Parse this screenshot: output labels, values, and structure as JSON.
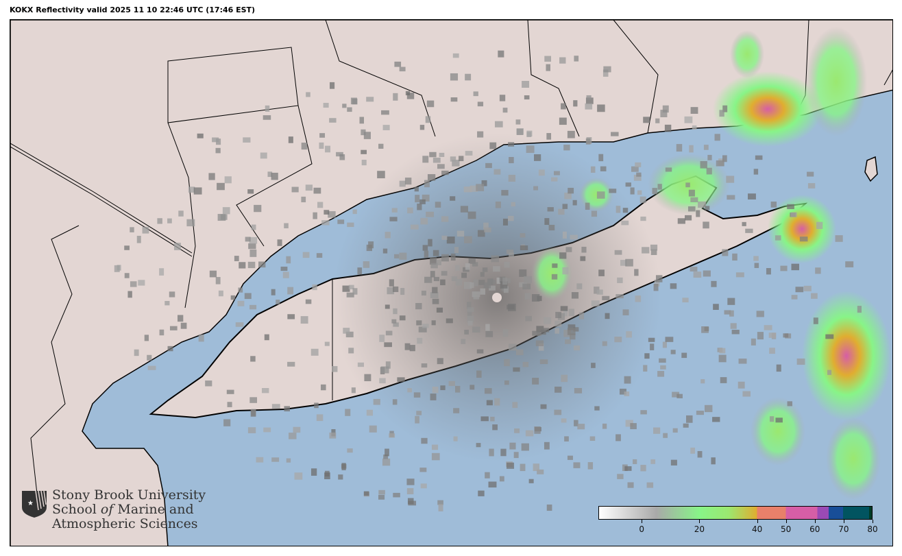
{
  "title": "KOKX Reflectivity valid 2025 11 10 22:46 UTC (17:46 EST)",
  "logo": {
    "line1": "Stony Brook University",
    "line2a": "School ",
    "line2b": "of",
    "line2c": " Marine and",
    "line3": "Atmospheric Sciences"
  },
  "colorbar": {
    "range": [
      -15,
      80
    ],
    "ticks": [
      "0",
      "20",
      "40",
      "50",
      "60",
      "70",
      "80"
    ],
    "tick_values": [
      0,
      20,
      40,
      50,
      60,
      70,
      80
    ],
    "colors": [
      "#ffffff",
      "#a9a9a9",
      "#88f488",
      "#9be870",
      "#e0ad30",
      "#e8806a",
      "#d65ea6",
      "#9a4ab5",
      "#184e98",
      "#015460",
      "#003c28"
    ]
  },
  "colors": {
    "water": "#9fbcd8",
    "land": "#e3d6d3",
    "borders": "#000000"
  }
}
